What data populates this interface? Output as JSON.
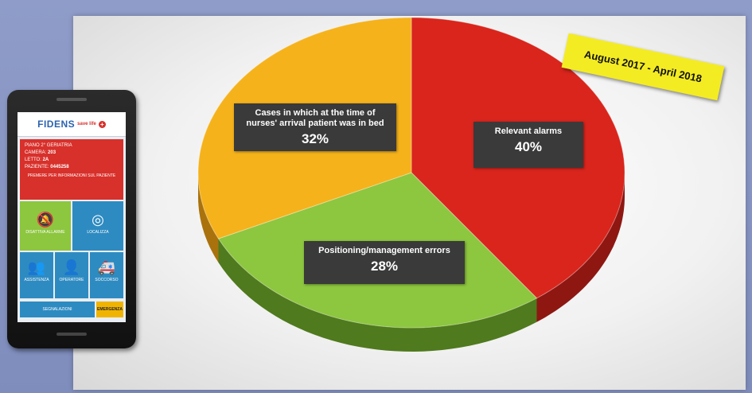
{
  "chart_data": {
    "type": "pie",
    "slices": [
      {
        "label": "Relevant alarms",
        "value": 40,
        "pct": "40%",
        "color": "#d9251c",
        "side": "#8e1712"
      },
      {
        "label": "Positioning/management errors",
        "value": 28,
        "pct": "28%",
        "color": "#8dc63f",
        "side": "#4f7a1d"
      },
      {
        "label": "Cases in which at the time of nurses' arrival patient was in bed",
        "value": 32,
        "pct": "32%",
        "color": "#f5b21b",
        "side": "#a9720c"
      }
    ],
    "annotation": "August 2017 - April 2018",
    "legend": "none",
    "style": "3d"
  },
  "phone": {
    "logo": "FIDENS",
    "logo_sub": "save life",
    "patient": {
      "ward": "PIANO 2° GERIATRIA",
      "room_label": "CAMERA:",
      "room": "203",
      "bed_label": "LETTO:",
      "bed": "2A",
      "patient_label": "PAZIENTE:",
      "patient_id": "0445258",
      "note": "PREMERE PER INFORMAZIONI SUL PAZIENTE"
    },
    "tiles": [
      {
        "icon": "🔕",
        "label": "DISATTIVA ALLARME",
        "color": "#8dc63f"
      },
      {
        "icon": "◎",
        "label": "LOCALIZZA",
        "color": "#2e8bc1"
      },
      {
        "icon": "👥",
        "label": "ASSISTENZA",
        "color": "#2e8bc1"
      },
      {
        "icon": "👤",
        "label": "OPERATORE",
        "color": "#2e8bc1"
      },
      {
        "icon": "🚑",
        "label": "SOCCORSO",
        "color": "#2e8bc1"
      }
    ],
    "footer_left": "SEGNALAZIONI",
    "footer_right": "EMERGENZA"
  }
}
